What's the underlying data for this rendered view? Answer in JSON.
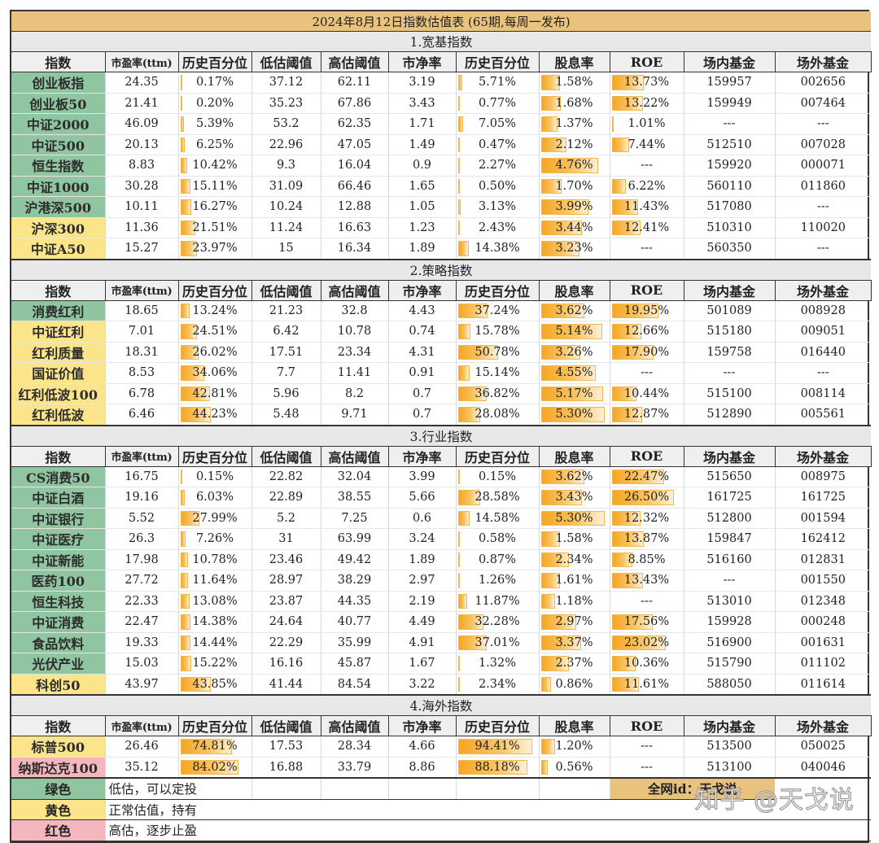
{
  "title": "2024年8月12日指数估值表 (65期,每周一发布)",
  "headers": [
    "指数",
    "市盈率(ttm)",
    "历史百分位",
    "低估阈值",
    "高估阈值",
    "市净率",
    "历史百分位",
    "股息率",
    "ROE",
    "场内基金",
    "场外基金"
  ],
  "colors": {
    "green": "#8fc5a0",
    "yellow": "#fbe48a",
    "red": "#f4b7bd",
    "bar": "#f6a623",
    "title_bg": "#e9c27e"
  },
  "sections": [
    {
      "title": "1.宽基指数",
      "rows": [
        {
          "name": "创业板指",
          "status": "green",
          "pe": "24.35",
          "pe_pct": "0.17%",
          "low": "37.12",
          "high": "62.11",
          "pb": "3.19",
          "pb_pct": "5.71%",
          "div": "1.58%",
          "roe": "13.73%",
          "etf": "159957",
          "otc": "002656"
        },
        {
          "name": "创业板50",
          "status": "green",
          "pe": "21.41",
          "pe_pct": "0.20%",
          "low": "35.23",
          "high": "67.86",
          "pb": "3.43",
          "pb_pct": "0.77%",
          "div": "1.68%",
          "roe": "13.22%",
          "etf": "159949",
          "otc": "007464"
        },
        {
          "name": "中证2000",
          "status": "green",
          "pe": "46.09",
          "pe_pct": "5.39%",
          "low": "53.2",
          "high": "62.35",
          "pb": "1.71",
          "pb_pct": "7.05%",
          "div": "1.37%",
          "roe": "1.01%",
          "etf": "---",
          "otc": "---"
        },
        {
          "name": "中证500",
          "status": "green",
          "pe": "20.13",
          "pe_pct": "6.25%",
          "low": "22.96",
          "high": "47.05",
          "pb": "1.49",
          "pb_pct": "0.47%",
          "div": "2.12%",
          "roe": "7.44%",
          "etf": "512510",
          "otc": "007028"
        },
        {
          "name": "恒生指数",
          "status": "green",
          "pe": "8.83",
          "pe_pct": "10.42%",
          "low": "9.3",
          "high": "16.04",
          "pb": "0.9",
          "pb_pct": "2.27%",
          "div": "4.76%",
          "roe": "---",
          "etf": "159920",
          "otc": "000071"
        },
        {
          "name": "中证1000",
          "status": "green",
          "pe": "30.28",
          "pe_pct": "15.11%",
          "low": "31.09",
          "high": "66.46",
          "pb": "1.65",
          "pb_pct": "0.50%",
          "div": "1.70%",
          "roe": "6.22%",
          "etf": "560110",
          "otc": "011860"
        },
        {
          "name": "沪港深500",
          "status": "green",
          "pe": "10.11",
          "pe_pct": "16.27%",
          "low": "10.24",
          "high": "12.88",
          "pb": "1.05",
          "pb_pct": "3.13%",
          "div": "3.99%",
          "roe": "11.43%",
          "etf": "517080",
          "otc": "---"
        },
        {
          "name": "沪深300",
          "status": "yellow",
          "pe": "11.36",
          "pe_pct": "21.51%",
          "low": "11.24",
          "high": "16.63",
          "pb": "1.23",
          "pb_pct": "2.43%",
          "div": "3.44%",
          "roe": "12.41%",
          "etf": "510310",
          "otc": "110020"
        },
        {
          "name": "中证A50",
          "status": "yellow",
          "pe": "15.27",
          "pe_pct": "23.97%",
          "low": "15",
          "high": "16.34",
          "pb": "1.89",
          "pb_pct": "14.38%",
          "div": "3.23%",
          "roe": "---",
          "etf": "560350",
          "otc": "---"
        }
      ]
    },
    {
      "title": "2.策略指数",
      "rows": [
        {
          "name": "消费红利",
          "status": "green",
          "pe": "18.65",
          "pe_pct": "13.24%",
          "low": "21.23",
          "high": "32.8",
          "pb": "4.43",
          "pb_pct": "37.24%",
          "div": "3.62%",
          "roe": "19.95%",
          "etf": "501089",
          "otc": "008928"
        },
        {
          "name": "中证红利",
          "status": "yellow",
          "pe": "7.01",
          "pe_pct": "24.51%",
          "low": "6.42",
          "high": "10.78",
          "pb": "0.74",
          "pb_pct": "15.78%",
          "div": "5.14%",
          "roe": "12.66%",
          "etf": "515180",
          "otc": "009051"
        },
        {
          "name": "红利质量",
          "status": "yellow",
          "pe": "18.31",
          "pe_pct": "26.02%",
          "low": "17.51",
          "high": "23.34",
          "pb": "4.31",
          "pb_pct": "50.78%",
          "div": "3.26%",
          "roe": "17.90%",
          "etf": "159758",
          "otc": "016440"
        },
        {
          "name": "国证价值",
          "status": "yellow",
          "pe": "8.53",
          "pe_pct": "34.06%",
          "low": "7.7",
          "high": "11.41",
          "pb": "0.91",
          "pb_pct": "15.14%",
          "div": "4.55%",
          "roe": "---",
          "etf": "---",
          "otc": "---"
        },
        {
          "name": "红利低波100",
          "status": "yellow",
          "pe": "6.78",
          "pe_pct": "42.81%",
          "low": "5.96",
          "high": "8.2",
          "pb": "0.7",
          "pb_pct": "36.82%",
          "div": "5.17%",
          "roe": "10.44%",
          "etf": "515100",
          "otc": "008114"
        },
        {
          "name": "红利低波",
          "status": "yellow",
          "pe": "6.46",
          "pe_pct": "44.23%",
          "low": "5.48",
          "high": "9.71",
          "pb": "0.7",
          "pb_pct": "28.08%",
          "div": "5.30%",
          "roe": "12.87%",
          "etf": "512890",
          "otc": "005561"
        }
      ]
    },
    {
      "title": "3.行业指数",
      "rows": [
        {
          "name": "CS消费50",
          "status": "green",
          "pe": "16.75",
          "pe_pct": "0.15%",
          "low": "22.82",
          "high": "32.04",
          "pb": "3.99",
          "pb_pct": "0.15%",
          "div": "3.62%",
          "roe": "22.47%",
          "etf": "515650",
          "otc": "008975"
        },
        {
          "name": "中证白酒",
          "status": "green",
          "pe": "19.16",
          "pe_pct": "6.03%",
          "low": "22.89",
          "high": "38.55",
          "pb": "5.66",
          "pb_pct": "28.58%",
          "div": "3.43%",
          "roe": "26.50%",
          "etf": "161725",
          "otc": "161725"
        },
        {
          "name": "中证银行",
          "status": "green",
          "pe": "5.52",
          "pe_pct": "27.99%",
          "low": "5.2",
          "high": "7.25",
          "pb": "0.6",
          "pb_pct": "14.58%",
          "div": "5.30%",
          "roe": "12.32%",
          "etf": "512800",
          "otc": "001594"
        },
        {
          "name": "中证医疗",
          "status": "green",
          "pe": "26.3",
          "pe_pct": "7.26%",
          "low": "31",
          "high": "63.99",
          "pb": "3.24",
          "pb_pct": "0.58%",
          "div": "1.58%",
          "roe": "13.87%",
          "etf": "159847",
          "otc": "162412"
        },
        {
          "name": "中证新能",
          "status": "green",
          "pe": "17.98",
          "pe_pct": "10.78%",
          "low": "23.46",
          "high": "49.42",
          "pb": "1.89",
          "pb_pct": "0.87%",
          "div": "2.34%",
          "roe": "8.85%",
          "etf": "516160",
          "otc": "012831"
        },
        {
          "name": "医药100",
          "status": "green",
          "pe": "27.72",
          "pe_pct": "11.64%",
          "low": "28.97",
          "high": "38.29",
          "pb": "2.97",
          "pb_pct": "1.26%",
          "div": "1.61%",
          "roe": "13.43%",
          "etf": "---",
          "otc": "001550"
        },
        {
          "name": "恒生科技",
          "status": "green",
          "pe": "22.33",
          "pe_pct": "13.08%",
          "low": "23.87",
          "high": "44.35",
          "pb": "2.19",
          "pb_pct": "11.87%",
          "div": "1.18%",
          "roe": "---",
          "etf": "513010",
          "otc": "012348"
        },
        {
          "name": "中证消费",
          "status": "green",
          "pe": "22.47",
          "pe_pct": "14.38%",
          "low": "24.64",
          "high": "40.77",
          "pb": "4.49",
          "pb_pct": "32.28%",
          "div": "2.97%",
          "roe": "17.56%",
          "etf": "159928",
          "otc": "000248"
        },
        {
          "name": "食品饮料",
          "status": "green",
          "pe": "19.33",
          "pe_pct": "14.44%",
          "low": "22.29",
          "high": "35.99",
          "pb": "4.91",
          "pb_pct": "37.01%",
          "div": "3.37%",
          "roe": "23.02%",
          "etf": "516900",
          "otc": "001631"
        },
        {
          "name": "光伏产业",
          "status": "green",
          "pe": "15.03",
          "pe_pct": "15.22%",
          "low": "16.16",
          "high": "45.87",
          "pb": "1.67",
          "pb_pct": "1.32%",
          "div": "2.37%",
          "roe": "10.36%",
          "etf": "515790",
          "otc": "011102"
        },
        {
          "name": "科创50",
          "status": "yellow",
          "pe": "43.97",
          "pe_pct": "43.85%",
          "low": "41.44",
          "high": "84.54",
          "pb": "3.22",
          "pb_pct": "2.34%",
          "div": "0.86%",
          "roe": "11.61%",
          "etf": "588050",
          "otc": "011614"
        }
      ]
    },
    {
      "title": "4.海外指数",
      "rows": [
        {
          "name": "标普500",
          "status": "yellow",
          "pe": "26.46",
          "pe_pct": "74.81%",
          "low": "17.53",
          "high": "28.34",
          "pb": "4.66",
          "pb_pct": "94.41%",
          "div": "1.20%",
          "roe": "---",
          "etf": "513500",
          "otc": "050025"
        },
        {
          "name": "纳斯达克100",
          "status": "red",
          "pe": "35.12",
          "pe_pct": "84.02%",
          "low": "16.88",
          "high": "33.79",
          "pb": "8.86",
          "pb_pct": "88.18%",
          "div": "0.56%",
          "roe": "---",
          "etf": "513100",
          "otc": "040046"
        }
      ]
    }
  ],
  "legend": [
    {
      "status": "green",
      "label": "绿色",
      "text": "低估，可以定投"
    },
    {
      "status": "yellow",
      "label": "黄色",
      "text": "正常估值，持有"
    },
    {
      "status": "red",
      "label": "红色",
      "text": "高估，逐步止盈"
    }
  ],
  "author_id": "全网id：天戈说",
  "watermark": "知乎 @天戈说",
  "bar_scale": {
    "pe_pct": 100,
    "pb_pct": 100,
    "div": 5.6,
    "roe": 30
  }
}
